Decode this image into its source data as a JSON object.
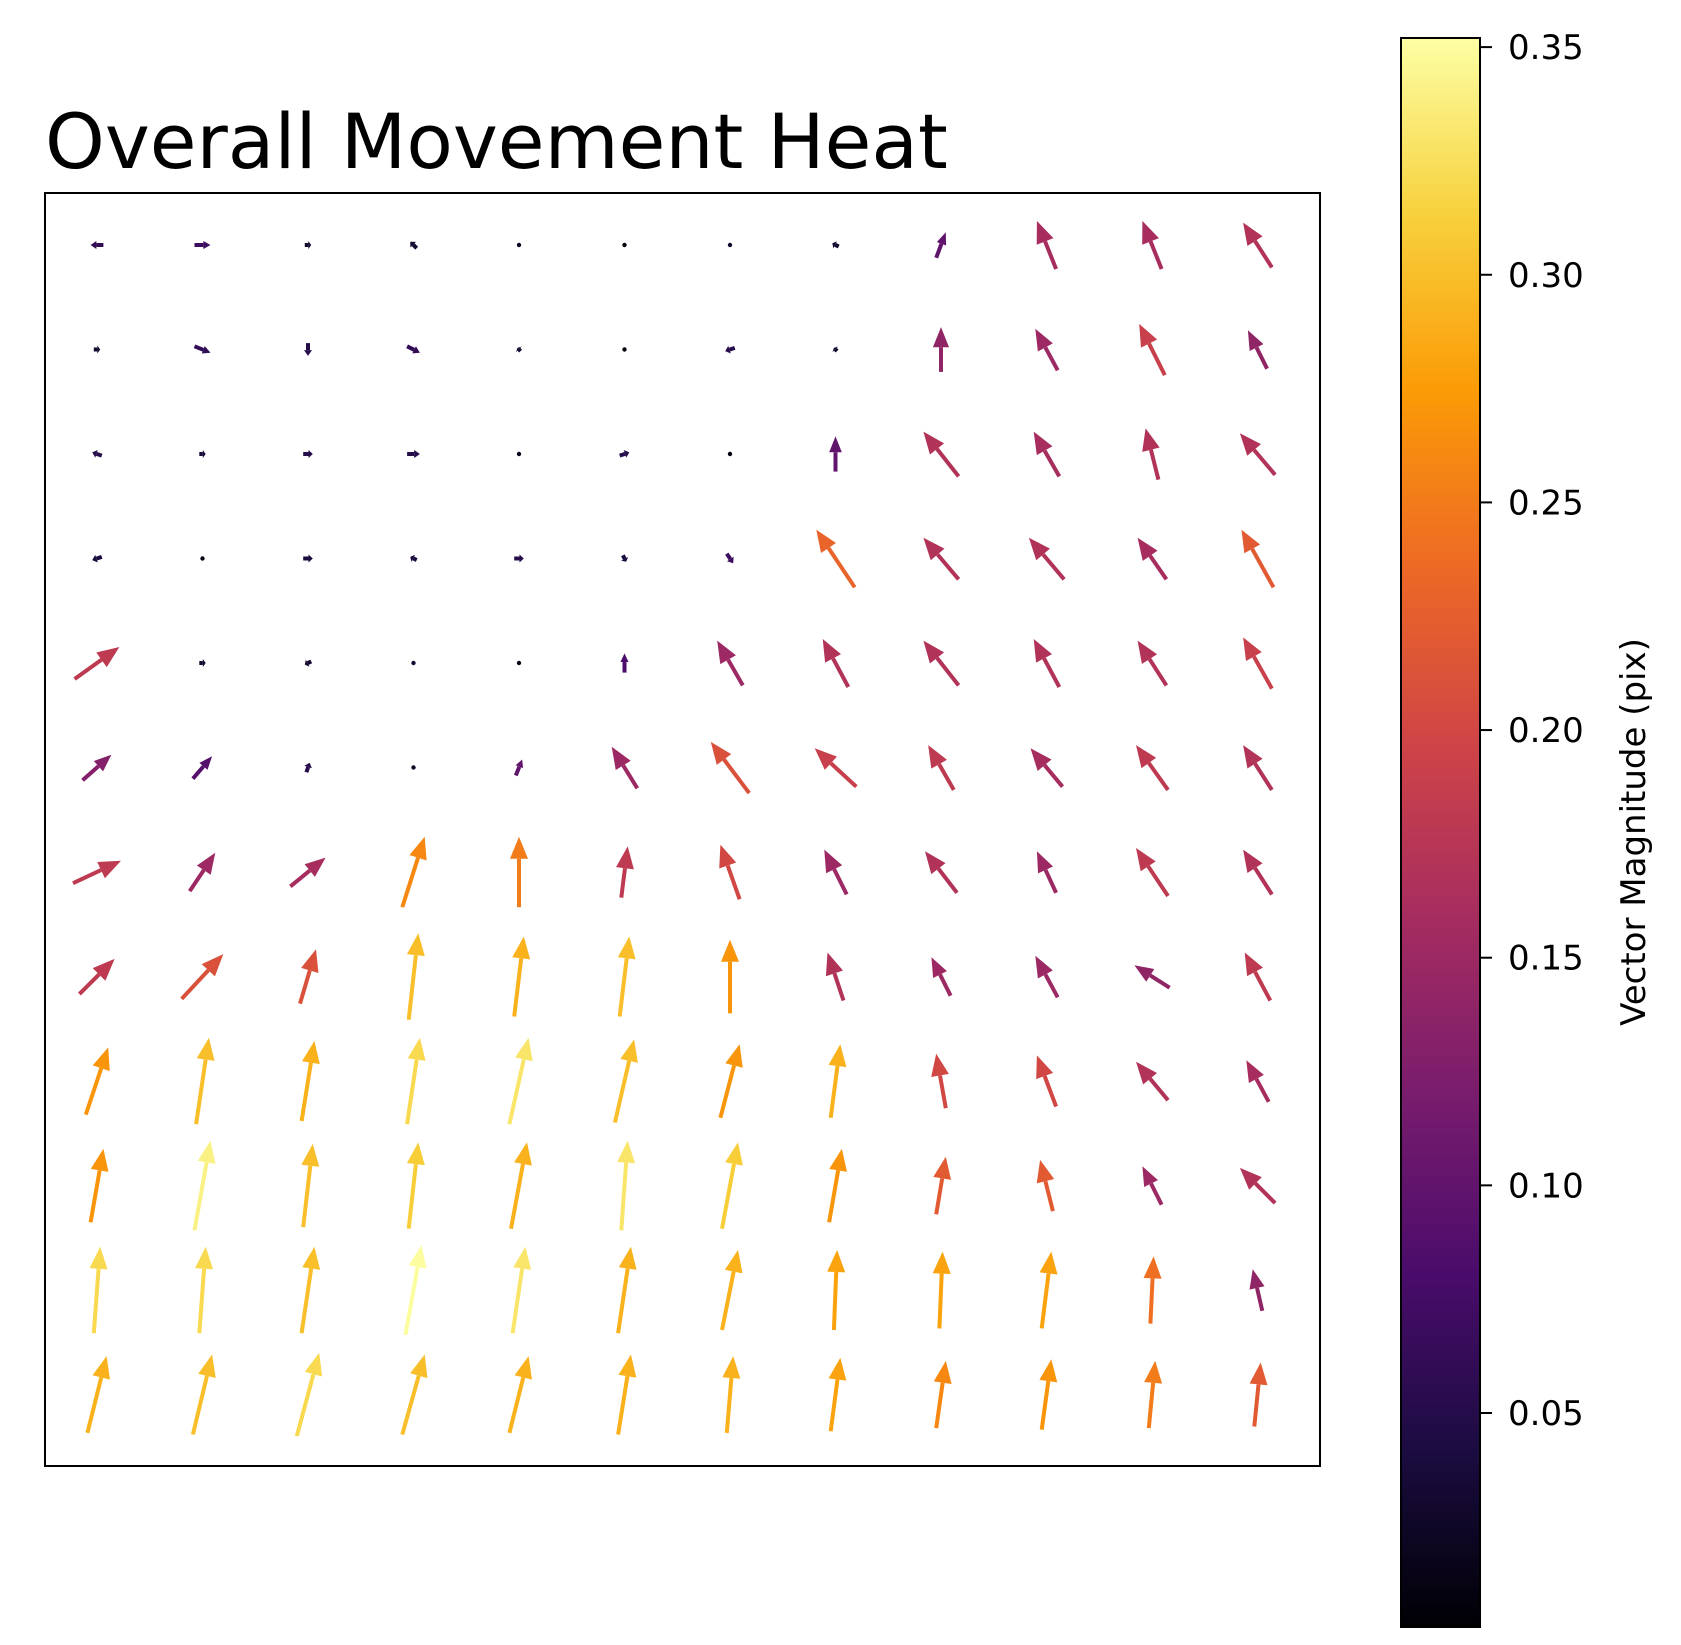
{
  "chart_data": {
    "type": "quiver",
    "title": "Overall Movement Heat",
    "xlabel": "",
    "ylabel": "",
    "grid": false,
    "axis_ticks": false,
    "colormap": "inferno",
    "colormap_stops": [
      "#000004",
      "#1b0c41",
      "#4a0c6b",
      "#781c6d",
      "#a52c60",
      "#cf4446",
      "#ed6925",
      "#fb9b06",
      "#f7d13d",
      "#fcffa4"
    ],
    "colorbar": {
      "label": "Vector Magnitude (pix)",
      "range": [
        0.003,
        0.352
      ],
      "ticks": [
        0.05,
        0.1,
        0.15,
        0.2,
        0.25,
        0.3,
        0.35
      ],
      "tick_labels": [
        "0.05",
        "0.10",
        "0.15",
        "0.20",
        "0.25",
        "0.30",
        "0.35"
      ]
    },
    "grid_size": {
      "cols": 12,
      "rows": 12
    },
    "vectors": [
      [
        [
          -0.04,
          0.0,
          0.06
        ],
        [
          0.05,
          0.0,
          0.07
        ],
        [
          0.02,
          0.0,
          0.03
        ],
        [
          -0.02,
          0.02,
          0.03
        ],
        [
          0.01,
          0.0,
          0.02
        ],
        [
          0.0,
          0.0,
          0.01
        ],
        [
          0.01,
          0.0,
          0.03
        ],
        [
          -0.02,
          0.01,
          0.03
        ],
        [
          0.03,
          0.08,
          0.1
        ],
        [
          -0.06,
          0.15,
          0.16
        ],
        [
          -0.06,
          0.15,
          0.16
        ],
        [
          -0.09,
          0.14,
          0.17
        ]
      ],
      [
        [
          0.02,
          0.0,
          0.03
        ],
        [
          0.05,
          -0.02,
          0.06
        ],
        [
          0.0,
          -0.04,
          0.05
        ],
        [
          0.04,
          -0.02,
          0.06
        ],
        [
          -0.01,
          0.01,
          0.03
        ],
        [
          0.0,
          0.0,
          0.01
        ],
        [
          -0.03,
          -0.01,
          0.05
        ],
        [
          -0.01,
          0.01,
          0.03
        ],
        [
          0.0,
          0.14,
          0.14
        ],
        [
          -0.07,
          0.13,
          0.15
        ],
        [
          -0.08,
          0.16,
          0.19
        ],
        [
          -0.06,
          0.12,
          0.14
        ]
      ],
      [
        [
          -0.03,
          0.01,
          0.05
        ],
        [
          0.02,
          0.0,
          0.04
        ],
        [
          0.03,
          0.0,
          0.05
        ],
        [
          0.04,
          0.0,
          0.05
        ],
        [
          0.01,
          0.0,
          0.02
        ],
        [
          0.03,
          0.01,
          0.05
        ],
        [
          0.0,
          0.0,
          0.01
        ],
        [
          0.0,
          0.11,
          0.1
        ],
        [
          -0.11,
          0.14,
          0.17
        ],
        [
          -0.08,
          0.14,
          0.16
        ],
        [
          -0.04,
          0.16,
          0.17
        ],
        [
          -0.11,
          0.13,
          0.17
        ]
      ],
      [
        [
          -0.03,
          -0.01,
          0.04
        ],
        [
          0.0,
          0.0,
          0.01
        ],
        [
          0.03,
          0.0,
          0.04
        ],
        [
          -0.02,
          0.01,
          0.04
        ],
        [
          0.03,
          0.0,
          0.05
        ],
        [
          0.01,
          -0.02,
          0.04
        ],
        [
          0.02,
          -0.03,
          0.07
        ],
        [
          -0.12,
          0.18,
          0.23
        ],
        [
          -0.11,
          0.13,
          0.17
        ],
        [
          -0.11,
          0.13,
          0.17
        ],
        [
          -0.09,
          0.13,
          0.16
        ],
        [
          -0.1,
          0.18,
          0.22
        ]
      ],
      [
        [
          0.14,
          0.1,
          0.18
        ],
        [
          0.02,
          0.0,
          0.03
        ],
        [
          -0.02,
          -0.01,
          0.03
        ],
        [
          0.01,
          0.0,
          0.03
        ],
        [
          0.0,
          0.01,
          0.02
        ],
        [
          0.0,
          0.06,
          0.08
        ],
        [
          -0.08,
          0.14,
          0.15
        ],
        [
          -0.08,
          0.15,
          0.17
        ],
        [
          -0.11,
          0.14,
          0.17
        ],
        [
          -0.08,
          0.15,
          0.17
        ],
        [
          -0.09,
          0.14,
          0.17
        ],
        [
          -0.09,
          0.16,
          0.19
        ]
      ],
      [
        [
          0.09,
          0.08,
          0.13
        ],
        [
          0.06,
          0.07,
          0.09
        ],
        [
          0.01,
          0.03,
          0.05
        ],
        [
          0.01,
          0.0,
          0.02
        ],
        [
          0.02,
          0.05,
          0.1
        ],
        [
          -0.08,
          0.13,
          0.15
        ],
        [
          -0.12,
          0.16,
          0.21
        ],
        [
          -0.13,
          0.12,
          0.19
        ],
        [
          -0.08,
          0.14,
          0.18
        ],
        [
          -0.1,
          0.12,
          0.16
        ],
        [
          -0.1,
          0.14,
          0.18
        ],
        [
          -0.09,
          0.14,
          0.17
        ]
      ],
      [
        [
          0.15,
          0.07,
          0.18
        ],
        [
          0.08,
          0.12,
          0.15
        ],
        [
          0.11,
          0.09,
          0.16
        ],
        [
          0.07,
          0.22,
          0.26
        ],
        [
          0.0,
          0.22,
          0.25
        ],
        [
          0.02,
          0.16,
          0.18
        ],
        [
          -0.06,
          0.17,
          0.2
        ],
        [
          -0.07,
          0.14,
          0.15
        ],
        [
          -0.1,
          0.13,
          0.17
        ],
        [
          -0.06,
          0.13,
          0.15
        ],
        [
          -0.1,
          0.15,
          0.18
        ],
        [
          -0.09,
          0.14,
          0.17
        ]
      ],
      [
        [
          0.11,
          0.11,
          0.18
        ],
        [
          0.13,
          0.14,
          0.21
        ],
        [
          0.05,
          0.17,
          0.21
        ],
        [
          0.03,
          0.27,
          0.3
        ],
        [
          0.03,
          0.25,
          0.29
        ],
        [
          0.03,
          0.25,
          0.3
        ],
        [
          0.0,
          0.23,
          0.27
        ],
        [
          -0.05,
          0.15,
          0.17
        ],
        [
          -0.06,
          0.12,
          0.15
        ],
        [
          -0.07,
          0.13,
          0.15
        ],
        [
          -0.11,
          0.07,
          0.14
        ],
        [
          -0.08,
          0.15,
          0.18
        ]
      ],
      [
        [
          0.07,
          0.21,
          0.27
        ],
        [
          0.04,
          0.27,
          0.3
        ],
        [
          0.04,
          0.25,
          0.29
        ],
        [
          0.04,
          0.27,
          0.32
        ],
        [
          0.06,
          0.27,
          0.33
        ],
        [
          0.06,
          0.26,
          0.3
        ],
        [
          0.06,
          0.23,
          0.27
        ],
        [
          0.03,
          0.23,
          0.29
        ],
        [
          -0.03,
          0.17,
          0.2
        ],
        [
          -0.06,
          0.16,
          0.2
        ],
        [
          -0.1,
          0.12,
          0.17
        ],
        [
          -0.07,
          0.13,
          0.16
        ]
      ],
      [
        [
          0.04,
          0.23,
          0.27
        ],
        [
          0.05,
          0.28,
          0.34
        ],
        [
          0.03,
          0.26,
          0.3
        ],
        [
          0.03,
          0.27,
          0.31
        ],
        [
          0.05,
          0.27,
          0.29
        ],
        [
          0.02,
          0.28,
          0.33
        ],
        [
          0.05,
          0.27,
          0.31
        ],
        [
          0.04,
          0.23,
          0.27
        ],
        [
          0.03,
          0.18,
          0.22
        ],
        [
          -0.04,
          0.16,
          0.22
        ],
        [
          -0.06,
          0.12,
          0.15
        ],
        [
          -0.11,
          0.11,
          0.17
        ]
      ],
      [
        [
          0.02,
          0.27,
          0.32
        ],
        [
          0.02,
          0.27,
          0.32
        ],
        [
          0.04,
          0.27,
          0.3
        ],
        [
          0.05,
          0.28,
          0.35
        ],
        [
          0.04,
          0.27,
          0.33
        ],
        [
          0.04,
          0.27,
          0.29
        ],
        [
          0.05,
          0.25,
          0.29
        ],
        [
          0.01,
          0.25,
          0.28
        ],
        [
          0.01,
          0.24,
          0.28
        ],
        [
          0.03,
          0.24,
          0.28
        ],
        [
          0.01,
          0.21,
          0.24
        ],
        [
          -0.03,
          0.13,
          0.14
        ]
      ],
      [
        [
          0.06,
          0.24,
          0.29
        ],
        [
          0.06,
          0.25,
          0.3
        ],
        [
          0.07,
          0.26,
          0.32
        ],
        [
          0.07,
          0.25,
          0.3
        ],
        [
          0.06,
          0.24,
          0.29
        ],
        [
          0.04,
          0.25,
          0.29
        ],
        [
          0.02,
          0.24,
          0.29
        ],
        [
          0.03,
          0.23,
          0.28
        ],
        [
          0.03,
          0.21,
          0.26
        ],
        [
          0.03,
          0.22,
          0.27
        ],
        [
          0.02,
          0.21,
          0.25
        ],
        [
          0.02,
          0.2,
          0.22
        ]
      ]
    ]
  }
}
